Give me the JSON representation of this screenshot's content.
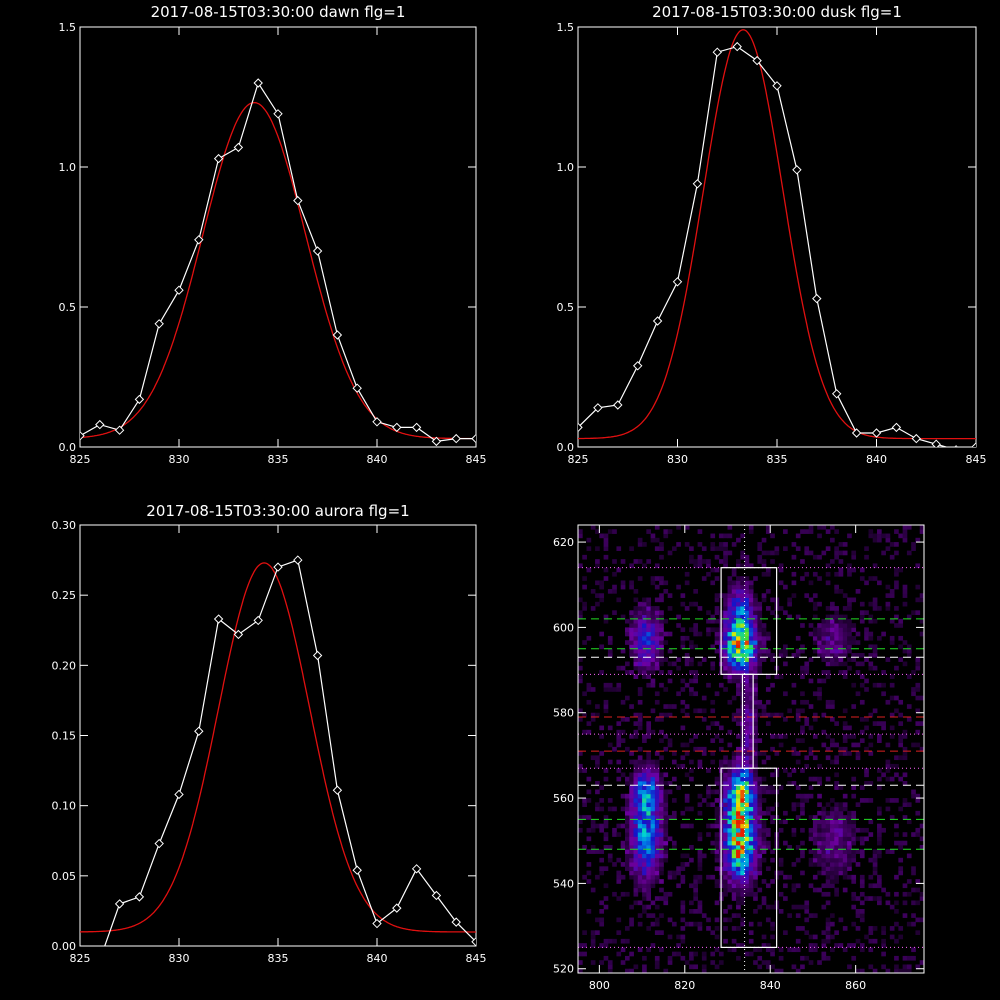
{
  "chart_data": [
    {
      "type": "line",
      "title": "2017-08-15T03:30:00 dawn flg=1",
      "xlim": [
        825,
        845
      ],
      "ylim": [
        0,
        1.5
      ],
      "xticks": [
        "825",
        "830",
        "835",
        "840",
        "845"
      ],
      "yticks": [
        "0.0",
        "0.5",
        "1.0",
        "1.5"
      ],
      "series": [
        {
          "kind": "measured",
          "color": "#ffffff",
          "x": [
            825,
            826,
            827,
            828,
            829,
            830,
            831,
            832,
            833,
            834,
            835,
            836,
            837,
            838,
            839,
            840,
            841,
            842,
            843,
            844,
            845
          ],
          "y": [
            0.04,
            0.08,
            0.06,
            0.17,
            0.44,
            0.56,
            0.74,
            1.03,
            1.07,
            1.3,
            1.19,
            0.88,
            0.7,
            0.4,
            0.21,
            0.09,
            0.07,
            0.07,
            0.02,
            0.03,
            0.03
          ]
        },
        {
          "kind": "fit",
          "color": "#e01010",
          "amp": 1.2,
          "center": 833.8,
          "sigma": 2.6,
          "offset": 0.03
        }
      ]
    },
    {
      "type": "line",
      "title": "2017-08-15T03:30:00 dusk flg=1",
      "xlim": [
        825,
        845
      ],
      "ylim": [
        0,
        1.5
      ],
      "xticks": [
        "825",
        "830",
        "835",
        "840",
        "845"
      ],
      "yticks": [
        "0.0",
        "0.5",
        "1.0",
        "1.5"
      ],
      "series": [
        {
          "kind": "measured",
          "color": "#ffffff",
          "x": [
            825,
            826,
            827,
            828,
            829,
            830,
            831,
            832,
            833,
            834,
            835,
            836,
            837,
            838,
            839,
            840,
            841,
            842,
            843,
            844,
            845
          ],
          "y": [
            0.07,
            0.14,
            0.15,
            0.29,
            0.45,
            0.59,
            0.94,
            1.41,
            1.43,
            1.38,
            1.29,
            0.99,
            0.53,
            0.19,
            0.05,
            0.05,
            0.07,
            0.03,
            0.01,
            -0.01,
            0.0
          ]
        },
        {
          "kind": "fit",
          "color": "#e01010",
          "amp": 1.46,
          "center": 833.3,
          "sigma": 2.0,
          "offset": 0.03
        }
      ]
    },
    {
      "type": "line",
      "title": "2017-08-15T03:30:00 aurora flg=1",
      "xlim": [
        825,
        845
      ],
      "ylim": [
        0,
        0.3
      ],
      "xticks": [
        "825",
        "830",
        "835",
        "840",
        "845"
      ],
      "yticks": [
        "0.00",
        "0.05",
        "0.10",
        "0.15",
        "0.20",
        "0.25",
        "0.30"
      ],
      "series": [
        {
          "kind": "measured",
          "color": "#ffffff",
          "x": [
            826,
            827,
            828,
            829,
            830,
            831,
            832,
            833,
            834,
            835,
            836,
            837,
            838,
            839,
            840,
            841,
            842,
            843,
            844,
            845
          ],
          "y": [
            -0.01,
            0.03,
            0.035,
            0.073,
            0.108,
            0.153,
            0.233,
            0.222,
            0.232,
            0.27,
            0.275,
            0.207,
            0.111,
            0.054,
            0.016,
            0.027,
            0.055,
            0.036,
            0.017,
            0.003
          ]
        },
        {
          "kind": "fit",
          "color": "#e01010",
          "amp": 0.263,
          "center": 834.3,
          "sigma": 2.3,
          "offset": 0.01
        }
      ]
    },
    {
      "type": "heatmap",
      "title": "",
      "xlim": [
        795,
        876
      ],
      "ylim": [
        519,
        624
      ],
      "xticks": [
        "800",
        "820",
        "840",
        "860"
      ],
      "yticks": [
        "520",
        "540",
        "560",
        "580",
        "600",
        "620"
      ],
      "blobs": [
        {
          "x": 811,
          "y": 597,
          "sx": 2.2,
          "sy": 4.5,
          "v": 0.45
        },
        {
          "x": 833,
          "y": 596,
          "sx": 2.4,
          "sy": 4.0,
          "v": 1.0
        },
        {
          "x": 833,
          "y": 605,
          "sx": 2.0,
          "sy": 3.5,
          "v": 0.45
        },
        {
          "x": 835,
          "y": 578,
          "sx": 1.2,
          "sy": 8.0,
          "v": 0.25
        },
        {
          "x": 833,
          "y": 550,
          "sx": 2.4,
          "sy": 6.0,
          "v": 1.0
        },
        {
          "x": 833,
          "y": 561,
          "sx": 2.2,
          "sy": 4.5,
          "v": 0.7
        },
        {
          "x": 811,
          "y": 552,
          "sx": 2.4,
          "sy": 7.0,
          "v": 0.6
        },
        {
          "x": 811,
          "y": 562,
          "sx": 2.0,
          "sy": 3.5,
          "v": 0.4
        },
        {
          "x": 855,
          "y": 597,
          "sx": 3.0,
          "sy": 4.0,
          "v": 0.2
        },
        {
          "x": 855,
          "y": 550,
          "sx": 3.5,
          "sy": 6.0,
          "v": 0.18
        }
      ],
      "boxes": [
        {
          "x0": 828.5,
          "x1": 841.5,
          "y0": 589,
          "y1": 614
        },
        {
          "x0": 828.5,
          "x1": 841.5,
          "y0": 525,
          "y1": 567
        },
        {
          "x0": 833.5,
          "x1": 836.0,
          "y0": 567,
          "y1": 589
        }
      ],
      "vline_x": 834,
      "dotted_y": [
        614,
        589,
        575,
        567,
        525
      ],
      "green_dashed_y": [
        602,
        595,
        555,
        548
      ],
      "white_dashed_y": [
        593,
        563
      ],
      "red_dashed_y": [
        579,
        571
      ]
    }
  ]
}
